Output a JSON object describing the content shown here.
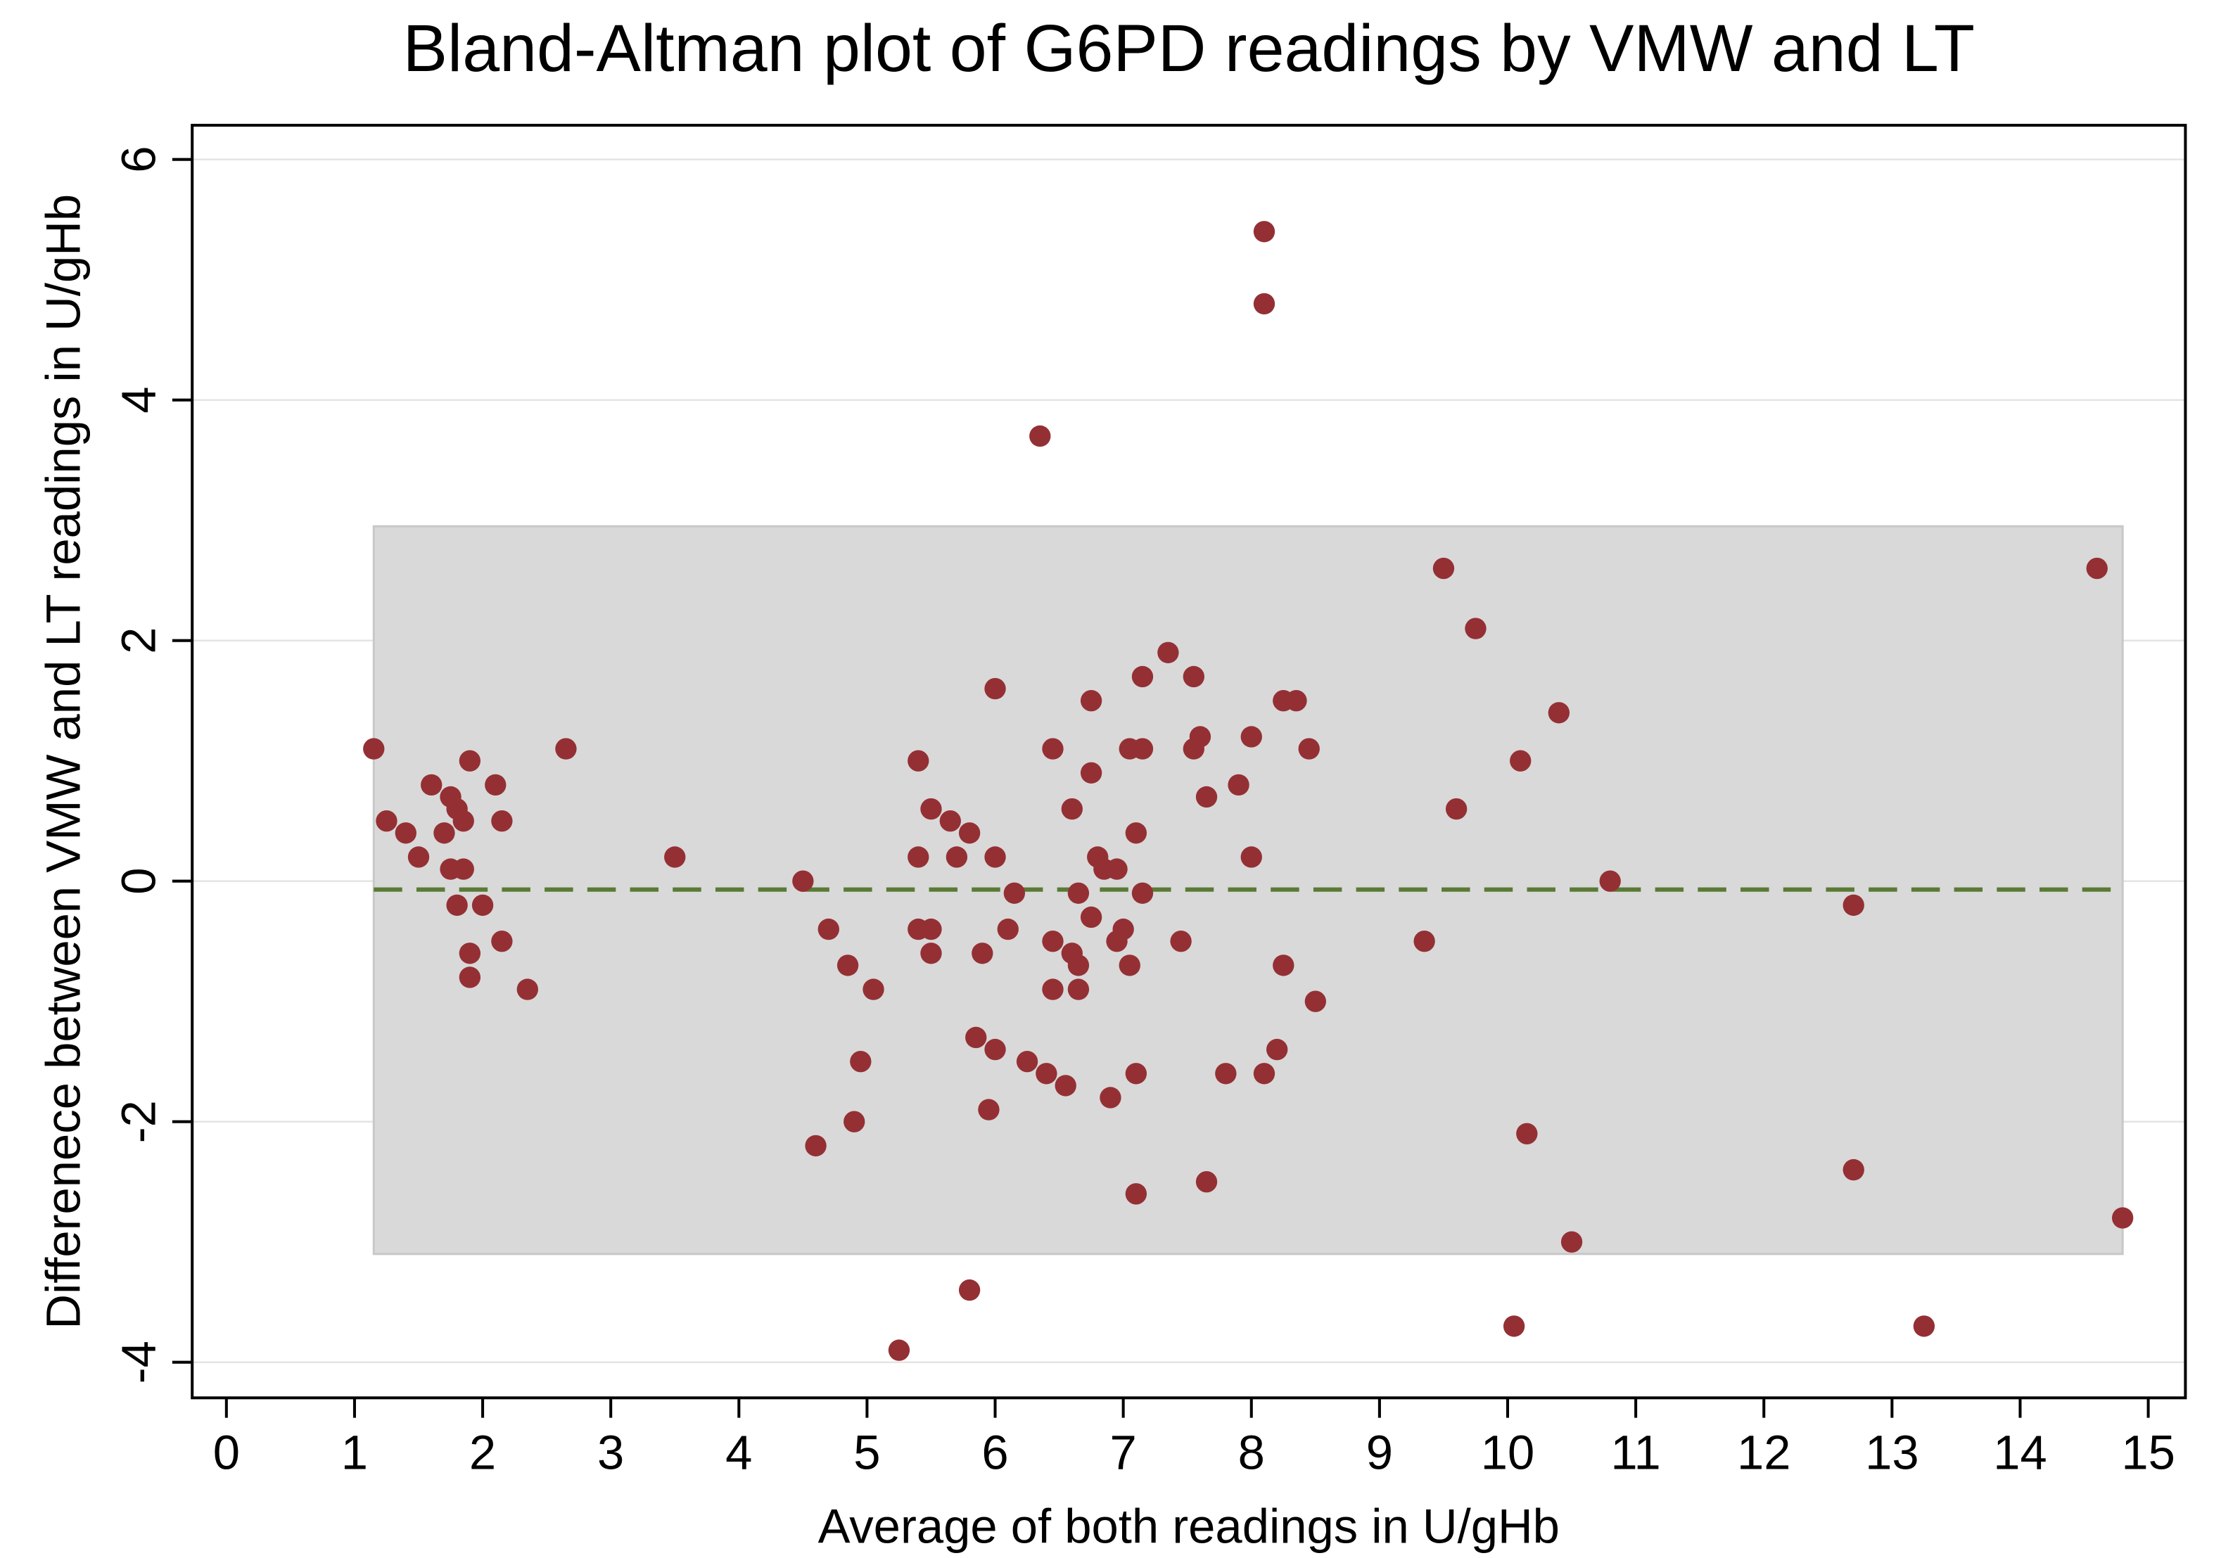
{
  "chart_data": {
    "type": "scatter",
    "title": "Bland-Altman plot of G6PD readings by VMW and LT",
    "x_label": "Average of both readings in U/gHb",
    "y_label": "Differenece between VMW and LT readings in U/gHb",
    "x": [
      1.15,
      1.25,
      1.4,
      1.5,
      1.6,
      1.7,
      1.75,
      1.75,
      1.8,
      1.8,
      1.85,
      1.85,
      1.9,
      1.9,
      1.9,
      2.0,
      2.1,
      2.15,
      2.15,
      2.35,
      2.65,
      3.5,
      4.5,
      4.6,
      4.7,
      4.85,
      4.9,
      4.95,
      5.05,
      5.25,
      5.4,
      5.4,
      5.4,
      5.5,
      5.5,
      5.5,
      5.65,
      5.7,
      5.8,
      5.8,
      5.85,
      5.9,
      5.95,
      6.0,
      6.0,
      6.0,
      6.1,
      6.15,
      6.25,
      6.35,
      6.4,
      6.45,
      6.45,
      6.45,
      6.55,
      6.6,
      6.6,
      6.65,
      6.65,
      6.65,
      6.75,
      6.75,
      6.75,
      6.8,
      6.85,
      6.9,
      6.95,
      6.95,
      7.0,
      7.05,
      7.05,
      7.1,
      7.1,
      7.1,
      7.15,
      7.15,
      7.15,
      7.35,
      7.45,
      7.55,
      7.55,
      7.6,
      7.65,
      7.65,
      7.8,
      7.9,
      8.0,
      8.0,
      8.1,
      8.1,
      8.1,
      8.2,
      8.25,
      8.25,
      8.35,
      8.45,
      8.5,
      9.35,
      9.5,
      9.6,
      9.75,
      10.05,
      10.1,
      10.15,
      10.4,
      10.5,
      10.8,
      12.7,
      12.7,
      13.25,
      14.6,
      14.8
    ],
    "series": [
      {
        "color": "#943034",
        "values": [
          1.1,
          0.5,
          0.4,
          0.2,
          0.8,
          0.4,
          0.7,
          0.1,
          0.6,
          -0.2,
          0.5,
          0.1,
          1.0,
          -0.6,
          -0.8,
          -0.2,
          0.8,
          0.5,
          -0.5,
          -0.9,
          1.1,
          0.2,
          0,
          -2.2,
          -0.4,
          -0.7,
          -2.0,
          -1.5,
          -0.9,
          -3.9,
          1.0,
          0.2,
          -0.4,
          0.6,
          -0.4,
          -0.6,
          0.5,
          0.2,
          0.4,
          -3.4,
          -1.3,
          -0.6,
          -1.9,
          1.6,
          0.2,
          -1.4,
          -0.4,
          -0.1,
          -1.5,
          3.7,
          -1.6,
          1.1,
          -0.5,
          -0.9,
          -1.7,
          0.6,
          -0.6,
          -0.1,
          -0.7,
          -0.9,
          1.5,
          0.9,
          -0.3,
          0.2,
          0.1,
          -1.8,
          0.1,
          -0.5,
          -0.4,
          1.1,
          -0.7,
          0.4,
          -1.6,
          -2.6,
          1.7,
          1.1,
          -0.1,
          1.9,
          -0.5,
          1.7,
          1.1,
          1.2,
          0.7,
          -2.5,
          -1.6,
          0.8,
          1.2,
          0.2,
          5.4,
          4.8,
          -1.6,
          -1.4,
          1.5,
          -0.7,
          1.5,
          1.1,
          -1.0,
          -0.5,
          2.6,
          0.6,
          2.1,
          -3.7,
          1.0,
          -2.1,
          1.4,
          -3.0,
          0,
          -0.2,
          -2.4,
          -3.7,
          2.6,
          -2.8
        ]
      }
    ],
    "band": {
      "x": [
        1.15,
        14.8
      ],
      "y": [
        -3.1,
        2.95
      ],
      "color": "#d9d9d9"
    },
    "mean_line": {
      "value": -0.07,
      "color": "#5a7a35"
    },
    "xlim": [
      -0.267,
      15.29
    ],
    "ylim": [
      -4.296,
      6.284
    ],
    "xticks": [
      0,
      1,
      2,
      3,
      4,
      5,
      6,
      7,
      8,
      9,
      10,
      11,
      12,
      13,
      14,
      15
    ],
    "yticks": [
      -4,
      -2,
      0,
      2,
      4,
      6
    ],
    "grid": true
  }
}
